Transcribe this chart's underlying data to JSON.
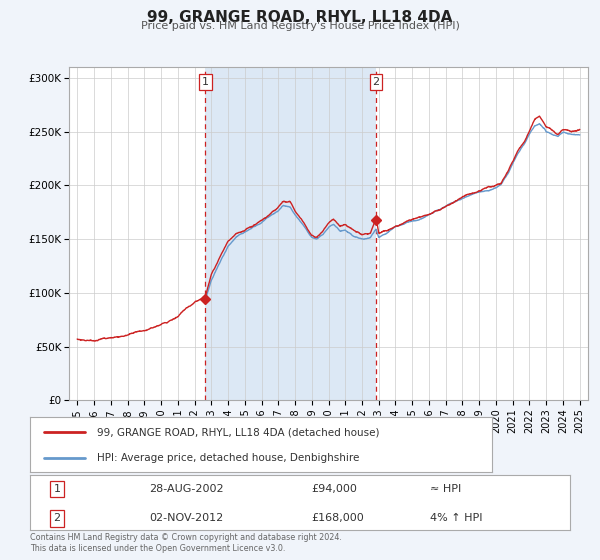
{
  "title": "99, GRANGE ROAD, RHYL, LL18 4DA",
  "subtitle": "Price paid vs. HM Land Registry's House Price Index (HPI)",
  "bg_color": "#f0f4fa",
  "plot_bg_color": "#ffffff",
  "shaded_region_color": "#dce8f5",
  "hpi_line_color": "#6699cc",
  "price_line_color": "#cc2222",
  "sale1_date": 2002.65,
  "sale1_price": 94000,
  "sale2_date": 2012.84,
  "sale2_price": 168000,
  "ylim": [
    0,
    310000
  ],
  "xlim_start": 1994.5,
  "xlim_end": 2025.5,
  "ytick_values": [
    0,
    50000,
    100000,
    150000,
    200000,
    250000,
    300000
  ],
  "ytick_labels": [
    "£0",
    "£50K",
    "£100K",
    "£150K",
    "£200K",
    "£250K",
    "£300K"
  ],
  "xtick_values": [
    1995,
    1996,
    1997,
    1998,
    1999,
    2000,
    2001,
    2002,
    2003,
    2004,
    2005,
    2006,
    2007,
    2008,
    2009,
    2010,
    2011,
    2012,
    2013,
    2014,
    2015,
    2016,
    2017,
    2018,
    2019,
    2020,
    2021,
    2022,
    2023,
    2024,
    2025
  ],
  "legend_label_price": "99, GRANGE ROAD, RHYL, LL18 4DA (detached house)",
  "legend_label_hpi": "HPI: Average price, detached house, Denbighshire",
  "annotation1_label": "1",
  "annotation1_date_str": "28-AUG-2002",
  "annotation1_price_str": "£94,000",
  "annotation1_hpi_str": "≈ HPI",
  "annotation2_label": "2",
  "annotation2_date_str": "02-NOV-2012",
  "annotation2_price_str": "£168,000",
  "annotation2_hpi_str": "4% ↑ HPI",
  "footer_text": "Contains HM Land Registry data © Crown copyright and database right 2024.\nThis data is licensed under the Open Government Licence v3.0."
}
